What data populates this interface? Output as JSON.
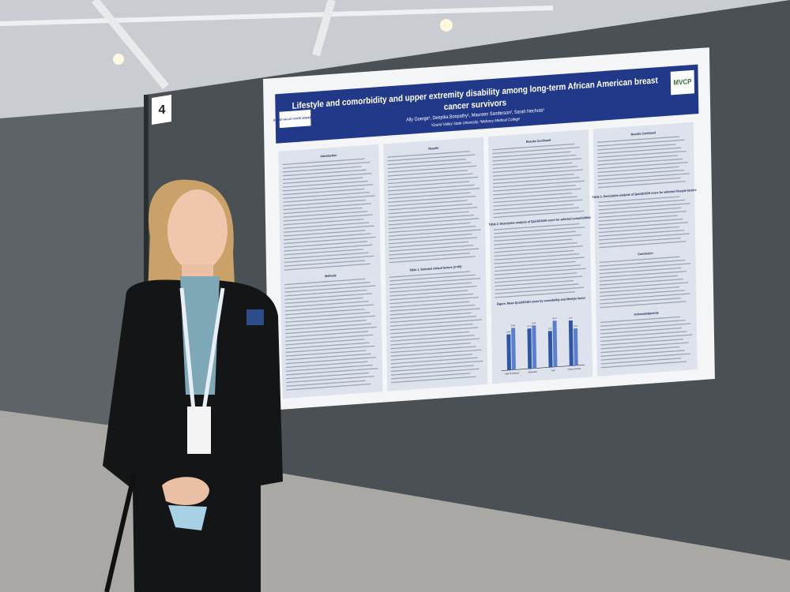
{
  "board_number": "4",
  "poster": {
    "title_line1": "Lifestyle and comorbidity and upper extremity disability among long-term African American breast",
    "title_line2": "cancer survivors",
    "authors": "Ally Goerge¹, Deepika Boopathy¹, Maureen Sanderson², Sarah Nechuta¹",
    "affiliation": "¹Grand Valley State University, ²Meharry Medical College",
    "logo_left": "GRAND VALLEY STATE UNIVERSITY",
    "logo_right": "MVCP",
    "columns": [
      {
        "sections": [
          "Introduction",
          "Methods"
        ]
      },
      {
        "sections": [
          "Results",
          "Table 1. Selected clinical factors (n=86)"
        ]
      },
      {
        "sections": [
          "Results Continued",
          "Table 2. Descriptive analysis of QuickDASH score for selected comorbidities",
          "Figure. Mean QuickDASH score by comorbidity and lifestyle factor"
        ]
      },
      {
        "sections": [
          "Results Continued",
          "Table 3. Descriptive analysis of QuickDASH score for selected lifestyle factors",
          "Conclusion",
          "Acknowledgments"
        ]
      }
    ],
    "figure": {
      "categories": [
        "High Cholesterol",
        "Medication",
        "Pain",
        "Physical Activity"
      ],
      "series": [
        {
          "color": "#2f55a4",
          "values": [
            22.07,
            24.74,
            22.3,
            27.9
          ]
        },
        {
          "color": "#5b7fc9",
          "values": [
            25.84,
            26.41,
            28.47,
            22.8
          ]
        }
      ],
      "ylim": [
        0,
        35
      ]
    }
  }
}
